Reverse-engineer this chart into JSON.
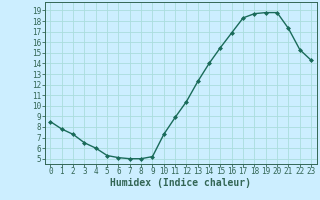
{
  "x": [
    0,
    1,
    2,
    3,
    4,
    5,
    6,
    7,
    8,
    9,
    10,
    11,
    12,
    13,
    14,
    15,
    16,
    17,
    18,
    19,
    20,
    21,
    22,
    23
  ],
  "y": [
    8.5,
    7.8,
    7.3,
    6.5,
    6.0,
    5.3,
    5.1,
    5.0,
    5.0,
    5.2,
    7.3,
    8.9,
    10.4,
    12.3,
    14.0,
    15.5,
    16.9,
    18.3,
    18.7,
    18.8,
    18.8,
    17.3,
    15.3,
    14.3
  ],
  "line_color": "#1a6b5a",
  "marker": "D",
  "markersize": 2.0,
  "linewidth": 1.0,
  "bg_color": "#cceeff",
  "grid_color": "#aadddd",
  "xlabel": "Humidex (Indice chaleur)",
  "xlabel_fontsize": 7,
  "ylabel_ticks": [
    5,
    6,
    7,
    8,
    9,
    10,
    11,
    12,
    13,
    14,
    15,
    16,
    17,
    18,
    19
  ],
  "xlabel_ticks": [
    0,
    1,
    2,
    3,
    4,
    5,
    6,
    7,
    8,
    9,
    10,
    11,
    12,
    13,
    14,
    15,
    16,
    17,
    18,
    19,
    20,
    21,
    22,
    23
  ],
  "xlim": [
    -0.5,
    23.5
  ],
  "ylim": [
    4.5,
    19.8
  ],
  "tick_fontsize": 5.5,
  "spine_color": "#336655"
}
